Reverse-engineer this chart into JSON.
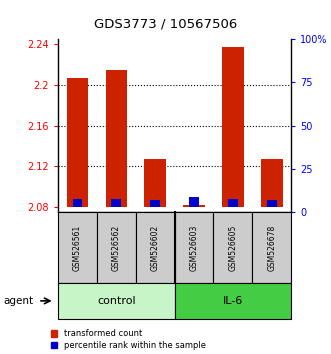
{
  "title": "GDS3773 / 10567506",
  "samples": [
    "GSM526561",
    "GSM526562",
    "GSM526602",
    "GSM526603",
    "GSM526605",
    "GSM526678"
  ],
  "red_values": [
    2.207,
    2.215,
    2.127,
    2.082,
    2.237,
    2.127
  ],
  "blue_percentiles": [
    5,
    5,
    4,
    6,
    5,
    4
  ],
  "ylim_left": [
    2.075,
    2.245
  ],
  "ylim_right": [
    0,
    100
  ],
  "yticks_left": [
    2.08,
    2.12,
    2.16,
    2.2,
    2.24
  ],
  "yticks_right": [
    0,
    25,
    50,
    75,
    100
  ],
  "groups": [
    {
      "label": "control",
      "indices": [
        0,
        1,
        2
      ],
      "color": "#c8f5c8"
    },
    {
      "label": "IL-6",
      "indices": [
        3,
        4,
        5
      ],
      "color": "#44cc44"
    }
  ],
  "bar_width": 0.55,
  "blue_bar_width": 0.25,
  "red_color": "#cc2200",
  "blue_color": "#0000cc",
  "label_bg_color": "#cccccc",
  "agent_label": "agent",
  "legend_red": "transformed count",
  "legend_blue": "percentile rank within the sample",
  "baseline": 2.08,
  "grid_ticks": [
    2.12,
    2.16,
    2.2
  ]
}
